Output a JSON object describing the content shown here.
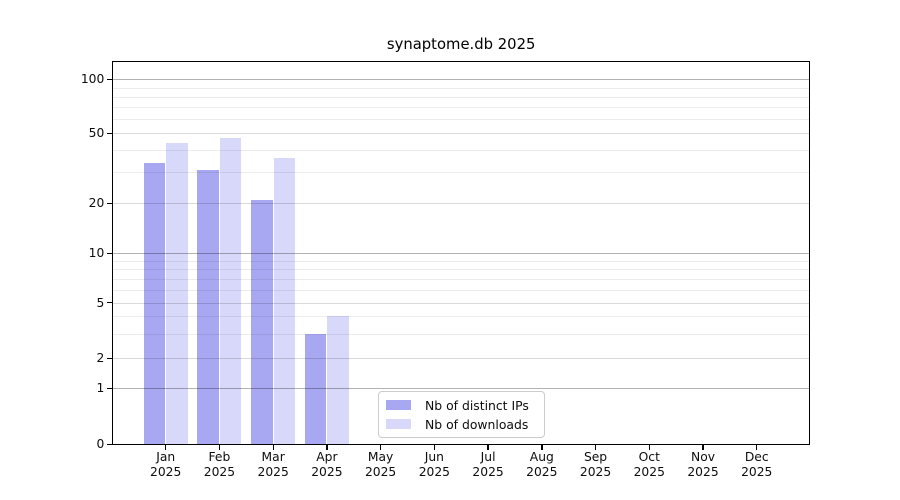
{
  "title": "synaptome.db 2025",
  "colors": {
    "distinct_ips": "#a8a8f2",
    "downloads": "#d8d8fa",
    "grid_minor": "rgba(0,0,0,0.075)",
    "grid_major": "rgba(0,0,0,0.15)",
    "grid_decade": "rgba(0,0,0,0.30)",
    "axis": "#000000"
  },
  "legend": {
    "items": [
      {
        "label": "Nb of distinct IPs",
        "series": "distinct_ips"
      },
      {
        "label": "Nb of downloads",
        "series": "downloads"
      }
    ]
  },
  "y_axis": {
    "tick_labels": [
      "0",
      "1",
      "2",
      "5",
      "10",
      "20",
      "50",
      "100"
    ]
  },
  "x_axis": {
    "tick_labels": [
      "Jan 2025",
      "Feb 2025",
      "Mar 2025",
      "Apr 2025",
      "May 2025",
      "Jun 2025",
      "Jul 2025",
      "Aug 2025",
      "Sep 2025",
      "Oct 2025",
      "Nov 2025",
      "Dec 2025"
    ]
  },
  "chart_data": {
    "type": "bar",
    "title": "synaptome.db 2025",
    "categories": [
      "Jan 2025",
      "Feb 2025",
      "Mar 2025",
      "Apr 2025",
      "May 2025",
      "Jun 2025",
      "Jul 2025",
      "Aug 2025",
      "Sep 2025",
      "Oct 2025",
      "Nov 2025",
      "Dec 2025"
    ],
    "series": [
      {
        "name": "Nb of distinct IPs",
        "color_key": "distinct_ips",
        "values": [
          34,
          31,
          21,
          3,
          0,
          0,
          0,
          0,
          0,
          0,
          0,
          0
        ]
      },
      {
        "name": "Nb of downloads",
        "color_key": "downloads",
        "values": [
          44,
          47,
          36,
          4,
          0,
          0,
          0,
          0,
          0,
          0,
          0,
          0
        ]
      }
    ],
    "xlabel": "",
    "ylabel": "",
    "y_scale": "asinh-like (linear near 0, log-like above)",
    "y_ticks": [
      0,
      1,
      2,
      5,
      10,
      20,
      50,
      100
    ],
    "y_minor_gridlines": [
      3,
      4,
      6,
      7,
      8,
      9,
      30,
      40,
      60,
      70,
      80,
      90
    ],
    "ylim": [
      0,
      140
    ],
    "grid": "horizontal major + minor",
    "legend_position": "lower center inside plot"
  }
}
